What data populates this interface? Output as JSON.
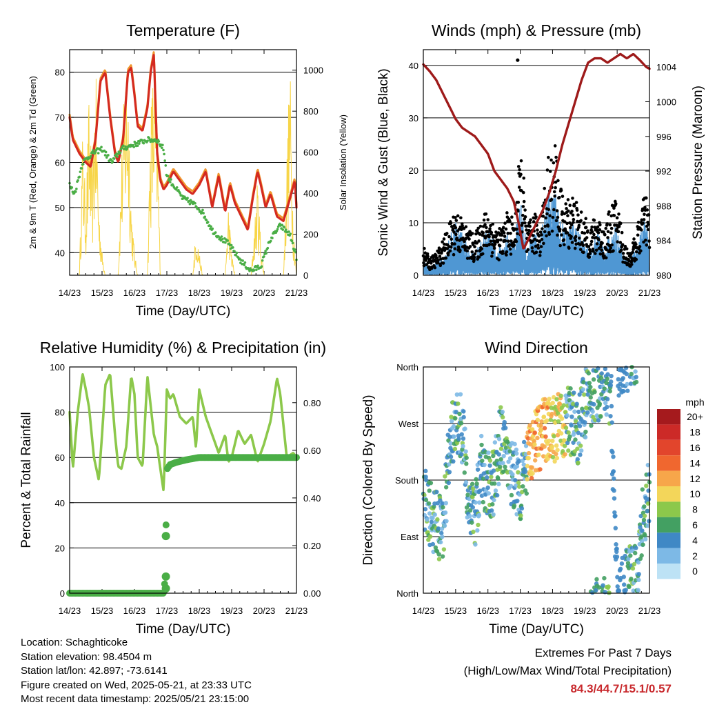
{
  "time_ticks": [
    "14/23",
    "15/23",
    "16/23",
    "17/23",
    "18/23",
    "19/23",
    "20/23",
    "21/23"
  ],
  "time_axis_label": "Time (Day/UTC)",
  "colors": {
    "temp_2m": "#d42a20",
    "temp_9m": "#f0962e",
    "dewpoint": "#4aae46",
    "solar": "#f7d548",
    "gust": "#000000",
    "wind": "#4f97d3",
    "pressure": "#9e1a1a",
    "rh": "#8cc84b",
    "precip": "#4aae46",
    "extremes": "#c8282c"
  },
  "chart_data": [
    {
      "id": "temperature",
      "type": "line",
      "title": "Temperature (F)",
      "xlabel": "Time (Day/UTC)",
      "ylabel": "2m & 9m T (Red, Orange) & 2m Td (Green)",
      "ylabel_right": "Solar Insolation (Yellow)",
      "ylim": [
        35,
        85
      ],
      "yticks": [
        40,
        50,
        60,
        70,
        80
      ],
      "ylim_right": [
        0,
        1100
      ],
      "yticks_right": [
        0,
        200,
        400,
        600,
        800,
        1000
      ],
      "xlim": [
        0,
        7
      ],
      "grid": true,
      "series": [
        {
          "key": "temp",
          "x": [
            0,
            0.1,
            0.3,
            0.5,
            0.65,
            0.8,
            0.95,
            1.1,
            1.25,
            1.4,
            1.5,
            1.65,
            1.8,
            1.9,
            2.0,
            2.1,
            2.25,
            2.4,
            2.5,
            2.6,
            2.7,
            2.8,
            2.9,
            3.0,
            3.2,
            3.4,
            3.6,
            3.8,
            4.0,
            4.2,
            4.4,
            4.6,
            4.8,
            4.95,
            5.1,
            5.3,
            5.5,
            5.65,
            5.8,
            5.9,
            6.05,
            6.2,
            6.4,
            6.6,
            6.8,
            6.95,
            7.0
          ],
          "y": [
            70,
            65,
            62,
            60,
            59,
            65,
            78,
            80,
            70,
            62,
            60,
            65,
            80,
            81,
            75,
            68,
            67,
            72,
            80,
            84,
            62,
            56,
            54,
            55,
            58,
            56,
            54,
            53,
            55,
            58,
            50,
            57,
            49,
            55,
            51,
            48,
            45,
            52,
            58,
            55,
            50,
            53,
            48,
            47,
            52,
            56,
            50
          ]
        },
        {
          "key": "dewpoint",
          "x": [
            0,
            0.15,
            0.4,
            0.7,
            1.0,
            1.3,
            1.6,
            2.0,
            2.4,
            2.7,
            2.9,
            3.0,
            3.2,
            3.5,
            3.8,
            4.1,
            4.4,
            4.7,
            4.9,
            5.1,
            5.3,
            5.6,
            5.9,
            6.2,
            6.5,
            6.8,
            7.0
          ],
          "y": [
            55,
            53,
            60,
            62,
            63,
            60,
            63,
            64,
            65,
            65,
            63,
            57,
            55,
            52,
            51,
            49,
            45,
            43,
            42,
            40,
            38,
            36,
            37,
            43,
            46,
            44,
            39
          ]
        },
        {
          "key": "solar",
          "x": [
            0,
            0.3,
            0.4,
            0.5,
            0.6,
            0.7,
            0.8,
            0.9,
            1.0,
            1.1,
            1.2,
            1.3,
            1.4,
            1.5,
            1.6,
            1.7,
            1.8,
            1.9,
            2.0,
            2.1,
            2.2,
            2.3,
            2.4,
            2.5,
            2.6,
            2.7,
            2.8,
            3.0,
            3.2,
            3.4,
            3.6,
            3.8,
            3.9,
            4.0,
            4.1,
            4.2,
            4.3,
            4.4,
            4.6,
            4.8,
            4.9,
            5.0,
            5.1,
            5.2,
            5.3,
            5.5,
            5.6,
            5.7,
            5.8,
            5.9,
            6.0,
            6.2,
            6.4,
            6.6,
            6.7,
            6.8,
            6.9,
            7.0
          ],
          "y": [
            0,
            0,
            600,
            300,
            750,
            400,
            900,
            300,
            100,
            0,
            0,
            0,
            0,
            0,
            500,
            800,
            900,
            300,
            100,
            0,
            0,
            0,
            0,
            700,
            900,
            700,
            0,
            0,
            0,
            0,
            0,
            0,
            200,
            100,
            0,
            0,
            0,
            0,
            0,
            0,
            300,
            100,
            0,
            0,
            0,
            0,
            0,
            200,
            400,
            150,
            0,
            0,
            0,
            0,
            500,
            900,
            250,
            0
          ]
        }
      ]
    },
    {
      "id": "winds",
      "type": "line",
      "title": "Winds (mph) & Pressure (mb)",
      "xlabel": "Time (Day/UTC)",
      "ylabel": "Sonic Wind & Gust (Blue, Black)",
      "ylabel_right": "Station Pressure (Maroon)",
      "ylim": [
        0,
        43
      ],
      "yticks": [
        0,
        10,
        20,
        30,
        40
      ],
      "ylim_right": [
        980,
        1006
      ],
      "yticks_right": [
        980,
        984,
        988,
        992,
        996,
        1000,
        1004
      ],
      "xlim": [
        0,
        7
      ],
      "grid": true,
      "series": [
        {
          "key": "pressure",
          "x": [
            0,
            0.2,
            0.4,
            0.6,
            0.8,
            1.0,
            1.2,
            1.4,
            1.6,
            1.8,
            2.0,
            2.2,
            2.4,
            2.6,
            2.8,
            2.95,
            3.1,
            3.3,
            3.5,
            3.7,
            3.9,
            4.1,
            4.3,
            4.5,
            4.7,
            4.9,
            5.1,
            5.3,
            5.5,
            5.7,
            5.9,
            6.1,
            6.3,
            6.5,
            6.7,
            6.9,
            7.0
          ],
          "y": [
            1004.3,
            1003.5,
            1002.5,
            1001,
            999.5,
            998,
            997,
            996.5,
            996,
            995,
            994,
            992,
            991,
            990,
            988.5,
            986,
            983,
            984.5,
            986,
            987.5,
            989.5,
            992,
            995,
            997.5,
            1000,
            1002.5,
            1004.5,
            1005,
            1005,
            1004.5,
            1005,
            1005.5,
            1005,
            1005.5,
            1004.8,
            1004,
            1003.8
          ]
        },
        {
          "key": "gust",
          "x": [
            0,
            0.2,
            0.4,
            0.6,
            0.8,
            1.0,
            1.2,
            1.4,
            1.6,
            1.8,
            2.0,
            2.2,
            2.4,
            2.6,
            2.8,
            2.9,
            3.0,
            3.1,
            3.2,
            3.4,
            3.6,
            3.8,
            3.9,
            4.0,
            4.1,
            4.2,
            4.4,
            4.6,
            4.8,
            5.0,
            5.2,
            5.4,
            5.6,
            5.8,
            6.0,
            6.2,
            6.4,
            6.6,
            6.8,
            6.9,
            7.0
          ],
          "y": [
            5,
            3,
            4,
            6,
            9,
            12,
            10,
            8,
            7,
            10,
            12,
            9,
            8,
            11,
            10,
            16,
            22,
            18,
            8,
            11,
            10,
            18,
            22,
            20,
            24,
            16,
            13,
            15,
            12,
            10,
            9,
            11,
            8,
            12,
            14,
            6,
            4,
            8,
            13,
            15,
            10
          ]
        },
        {
          "key": "wind",
          "x": [
            0,
            0.2,
            0.4,
            0.6,
            0.8,
            1.0,
            1.2,
            1.4,
            1.6,
            1.8,
            2.0,
            2.2,
            2.4,
            2.6,
            2.8,
            2.9,
            3.0,
            3.1,
            3.2,
            3.4,
            3.6,
            3.8,
            3.9,
            4.0,
            4.1,
            4.2,
            4.4,
            4.6,
            4.8,
            5.0,
            5.2,
            5.4,
            5.6,
            5.8,
            6.0,
            6.2,
            6.4,
            6.6,
            6.8,
            6.9,
            7.0
          ],
          "y": [
            2,
            1,
            2,
            3,
            5,
            8,
            6,
            4,
            3,
            5,
            7,
            5,
            4,
            6,
            5,
            8,
            10,
            9,
            3,
            6,
            5,
            10,
            12,
            11,
            13,
            8,
            7,
            8,
            6,
            5,
            4,
            6,
            4,
            6,
            7,
            3,
            2,
            4,
            7,
            8,
            5
          ]
        }
      ],
      "isolated_gust": {
        "x": 2.92,
        "y": 41
      }
    },
    {
      "id": "humidity",
      "type": "line",
      "title": "Relative Humidity (%) & Precipitation (in)",
      "xlabel": "Time (Day/UTC)",
      "ylabel": "Percent & Total Rainfall",
      "ylim": [
        0,
        100
      ],
      "yticks": [
        0,
        20,
        40,
        60,
        80,
        100
      ],
      "ylim_right": [
        0,
        0.95
      ],
      "yticks_right": [
        "0.00",
        "0.20",
        "0.40",
        "0.60",
        "0.80"
      ],
      "xlim": [
        0,
        7
      ],
      "grid": true,
      "series": [
        {
          "key": "rh",
          "x": [
            0,
            0.1,
            0.25,
            0.4,
            0.5,
            0.6,
            0.75,
            0.9,
            1.0,
            1.1,
            1.25,
            1.4,
            1.5,
            1.6,
            1.75,
            1.9,
            2.0,
            2.1,
            2.25,
            2.4,
            2.6,
            2.7,
            2.8,
            2.9,
            3.0,
            3.1,
            3.2,
            3.4,
            3.6,
            3.8,
            3.9,
            4.0,
            4.2,
            4.4,
            4.6,
            4.8,
            4.9,
            5.0,
            5.2,
            5.4,
            5.6,
            5.8,
            6.0,
            6.2,
            6.4,
            6.5,
            6.7,
            6.9,
            7.0
          ],
          "y": [
            80,
            55,
            80,
            97,
            90,
            82,
            60,
            50,
            70,
            92,
            97,
            70,
            56,
            55,
            65,
            96,
            88,
            60,
            56,
            96,
            70,
            65,
            55,
            45,
            90,
            86,
            88,
            78,
            75,
            78,
            64,
            90,
            78,
            70,
            62,
            70,
            58,
            60,
            72,
            66,
            70,
            58,
            66,
            76,
            95,
            88,
            60,
            62,
            60
          ]
        },
        {
          "key": "precip",
          "x": [
            0,
            0.5,
            1.0,
            1.5,
            2.0,
            2.5,
            2.9,
            2.92,
            2.95,
            2.97,
            3.0,
            3.1,
            3.3,
            3.6,
            4.0,
            4.5,
            5.0,
            5.5,
            6.0,
            6.5,
            7.0
          ],
          "y": [
            0,
            0,
            0,
            0,
            0,
            0,
            0,
            0.02,
            0.07,
            0.24,
            0.52,
            0.54,
            0.55,
            0.56,
            0.57,
            0.57,
            0.57,
            0.57,
            0.57,
            0.57,
            0.57
          ]
        }
      ]
    },
    {
      "id": "direction",
      "type": "scatter",
      "title": "Wind Direction",
      "xlabel": "Time (Day/UTC)",
      "ylabel": "Direction (Colored By Speed)",
      "y_categories": [
        "North",
        "East",
        "South",
        "West",
        "North"
      ],
      "ylim": [
        0,
        360
      ],
      "xlim": [
        0,
        7
      ],
      "grid": true,
      "direction_track": {
        "x": [
          0,
          0.3,
          0.6,
          0.8,
          0.9,
          1.0,
          1.2,
          1.4,
          1.6,
          1.8,
          2.0,
          2.2,
          2.4,
          2.6,
          2.8,
          3.0,
          3.2,
          3.4,
          3.6,
          3.8,
          4.0,
          4.2,
          4.4,
          4.6,
          4.8,
          5.0,
          5.2,
          5.4,
          5.6,
          5.8,
          6.0,
          6.2,
          6.4,
          6.6,
          6.8,
          6.9,
          7.0
        ],
        "y": [
          150,
          120,
          100,
          220,
          250,
          270,
          260,
          150,
          120,
          200,
          170,
          180,
          250,
          200,
          190,
          170,
          200,
          230,
          250,
          260,
          260,
          265,
          270,
          275,
          260,
          300,
          320,
          330,
          330,
          320,
          0,
          10,
          20,
          30,
          120,
          140,
          160
        ]
      },
      "colorbar": {
        "title": "mph",
        "labels": [
          "20+",
          "18",
          "16",
          "14",
          "12",
          "10",
          "8",
          "6",
          "4",
          "2",
          "0"
        ],
        "colors": [
          "#a51a1d",
          "#cc2a27",
          "#e2452c",
          "#f0672f",
          "#f7a64a",
          "#f3d65a",
          "#8cc84b",
          "#43a062",
          "#3f88c5",
          "#7db9e6",
          "#bde2f5"
        ]
      }
    }
  ],
  "info": {
    "location": "Location: Schaghticoke",
    "elevation": "Station elevation: 98.4504 m",
    "latlon": "Station lat/lon: 42.897; -73.6141",
    "created": "Figure created on Wed, 2025-05-21, at 23:33 UTC",
    "recent": "Most recent data timestamp: 2025/05/21 23:15:00"
  },
  "extremes": {
    "title": "Extremes For Past 7 Days",
    "subtitle": "(High/Low/Max Wind/Total Precipitation)",
    "values": "84.3/44.7/15.1/0.57"
  }
}
